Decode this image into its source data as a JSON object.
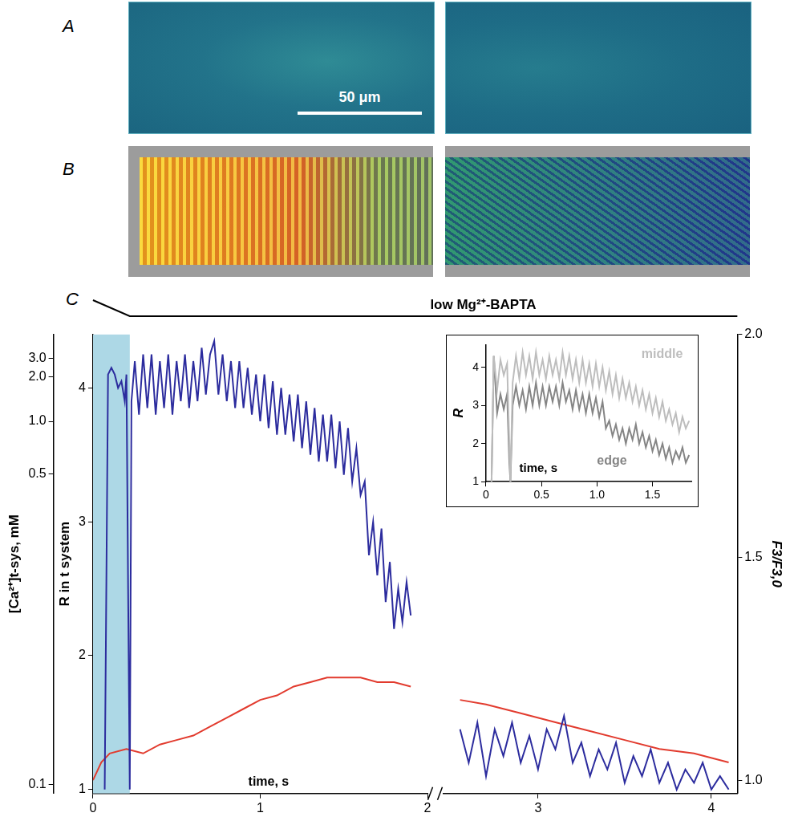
{
  "panels": [
    {
      "panel": "A",
      "scale_bar": "50 μm"
    },
    {
      "panel": "B"
    }
  ],
  "chart_data": [
    {
      "type": "line",
      "panel": "C",
      "x_label": "time, s",
      "y_label": "R in t system",
      "ylim": [
        0.97,
        4.4
      ],
      "yticks": [
        1,
        2,
        3,
        4
      ],
      "ca_axis": {
        "title": "[Ca²⁺]t-sys, mM",
        "ticks": [
          {
            "value": 0.1,
            "r": 1.04
          },
          {
            "value": 0.5,
            "r": 3.36
          },
          {
            "value": 1,
            "label": "1.0",
            "r": 3.75
          },
          {
            "value": 2,
            "label": "2.0",
            "r": 4.08
          },
          {
            "value": 3,
            "label": "3.0",
            "r": 4.22
          }
        ]
      },
      "y2_label": "F3/F3,0",
      "y2lim": [
        0.97,
        2.0
      ],
      "y2ticks": [
        {
          "value": 1,
          "label": "1.0"
        },
        1.5,
        {
          "value": 2,
          "label": "2.0"
        }
      ],
      "grid": false,
      "shaded_region": [
        0,
        0.22
      ],
      "solution_bar": {
        "text": "low Mg²⁺-BAPTA",
        "ramp": [
          0,
          0.22
        ]
      },
      "segments": [
        {
          "xlim": [
            0,
            2
          ],
          "xticks": [
            0,
            1,
            2
          ],
          "series": [
            {
              "color": "#2c2c9e",
              "axis": "y",
              "x": [
                0.07,
                0.09,
                0.11,
                0.13,
                0.15,
                0.17,
                0.19,
                0.2,
                0.21,
                0.22,
                0.23,
                0.25,
                0.275,
                0.3,
                0.325,
                0.35,
                0.375,
                0.4,
                0.425,
                0.45,
                0.475,
                0.5,
                0.525,
                0.55,
                0.575,
                0.6,
                0.625,
                0.65,
                0.675,
                0.7,
                0.725,
                0.75,
                0.775,
                0.8,
                0.825,
                0.85,
                0.875,
                0.9,
                0.925,
                0.95,
                0.975,
                1.0,
                1.025,
                1.05,
                1.075,
                1.1,
                1.125,
                1.15,
                1.175,
                1.2,
                1.225,
                1.25,
                1.275,
                1.3,
                1.325,
                1.35,
                1.375,
                1.4,
                1.425,
                1.45,
                1.475,
                1.5,
                1.525,
                1.55,
                1.575,
                1.6,
                1.625,
                1.65,
                1.675,
                1.7,
                1.725,
                1.75,
                1.775,
                1.8,
                1.825,
                1.85,
                1.875,
                1.9
              ],
              "values": [
                1.0,
                4.1,
                4.15,
                4.1,
                4.0,
                4.05,
                3.9,
                4.1,
                2.5,
                1.0,
                3.9,
                4.2,
                3.8,
                4.25,
                3.85,
                4.25,
                3.8,
                4.2,
                3.85,
                4.25,
                3.8,
                4.2,
                3.9,
                4.25,
                3.85,
                4.2,
                3.9,
                4.3,
                3.95,
                4.25,
                4.35,
                3.95,
                4.25,
                3.9,
                4.2,
                3.85,
                4.2,
                3.85,
                4.15,
                3.8,
                4.1,
                3.75,
                4.1,
                3.7,
                4.05,
                3.65,
                4.0,
                3.65,
                3.95,
                3.6,
                3.95,
                3.55,
                3.9,
                3.5,
                3.85,
                3.45,
                3.8,
                3.45,
                3.8,
                3.4,
                3.75,
                3.35,
                3.7,
                3.3,
                3.55,
                3.2,
                3.3,
                2.75,
                3.0,
                2.6,
                2.95,
                2.4,
                2.7,
                2.2,
                2.5,
                2.25,
                2.55,
                2.3
              ]
            },
            {
              "color": "#e23b2e",
              "axis": "y2",
              "x": [
                0,
                0.05,
                0.1,
                0.2,
                0.3,
                0.4,
                0.5,
                0.6,
                0.7,
                0.8,
                0.9,
                1.0,
                1.1,
                1.2,
                1.3,
                1.4,
                1.5,
                1.6,
                1.7,
                1.8,
                1.9
              ],
              "values": [
                1.0,
                1.04,
                1.06,
                1.07,
                1.06,
                1.08,
                1.09,
                1.1,
                1.12,
                1.14,
                1.16,
                1.18,
                1.19,
                1.21,
                1.22,
                1.23,
                1.23,
                1.23,
                1.22,
                1.22,
                1.21
              ]
            }
          ]
        },
        {
          "xlim": [
            2.45,
            4.15
          ],
          "xticks": [
            3,
            4
          ],
          "series": [
            {
              "color": "#2c2c9e",
              "axis": "y",
              "x": [
                2.55,
                2.6,
                2.65,
                2.7,
                2.75,
                2.8,
                2.85,
                2.9,
                2.95,
                3.0,
                3.05,
                3.1,
                3.15,
                3.2,
                3.25,
                3.3,
                3.35,
                3.4,
                3.45,
                3.5,
                3.55,
                3.6,
                3.65,
                3.7,
                3.75,
                3.8,
                3.85,
                3.9,
                3.95,
                4.0,
                4.05,
                4.1
              ],
              "values": [
                1.45,
                1.2,
                1.5,
                1.1,
                1.45,
                1.25,
                1.5,
                1.2,
                1.4,
                1.15,
                1.45,
                1.3,
                1.55,
                1.2,
                1.35,
                1.1,
                1.3,
                1.15,
                1.35,
                1.05,
                1.25,
                1.1,
                1.3,
                1.05,
                1.2,
                1.0,
                1.15,
                1.05,
                1.2,
                1.0,
                1.1,
                1.0
              ]
            },
            {
              "color": "#e23b2e",
              "axis": "y2",
              "x": [
                2.55,
                2.7,
                2.9,
                3.1,
                3.3,
                3.5,
                3.7,
                3.9,
                4.1
              ],
              "values": [
                1.18,
                1.17,
                1.15,
                1.13,
                1.11,
                1.09,
                1.07,
                1.06,
                1.04
              ]
            }
          ]
        }
      ]
    },
    {
      "type": "line",
      "x_label": "time, s",
      "y_label": "R",
      "xlim": [
        0,
        1.85
      ],
      "xticks": [
        0,
        0.5,
        {
          "value": 1,
          "label": "1.0"
        },
        1.5
      ],
      "ylim": [
        1,
        4.6
      ],
      "yticks": [
        1,
        2,
        3,
        4
      ],
      "grid": false,
      "legend": "inline",
      "x": [
        0.05,
        0.07,
        0.1,
        0.13,
        0.16,
        0.19,
        0.21,
        0.22,
        0.24,
        0.27,
        0.3,
        0.33,
        0.36,
        0.39,
        0.42,
        0.45,
        0.48,
        0.51,
        0.54,
        0.57,
        0.6,
        0.63,
        0.66,
        0.69,
        0.72,
        0.75,
        0.78,
        0.81,
        0.84,
        0.87,
        0.9,
        0.93,
        0.96,
        0.99,
        1.02,
        1.05,
        1.08,
        1.11,
        1.14,
        1.17,
        1.2,
        1.23,
        1.26,
        1.29,
        1.32,
        1.35,
        1.38,
        1.41,
        1.44,
        1.47,
        1.5,
        1.53,
        1.56,
        1.59,
        1.62,
        1.65,
        1.68,
        1.71,
        1.74,
        1.77,
        1.8,
        1.83
      ],
      "series": [
        {
          "name": "middle",
          "color": "#bdbdbd",
          "values": [
            1.0,
            4.3,
            3.4,
            4.2,
            3.8,
            4.1,
            2.0,
            1.0,
            3.6,
            4.3,
            3.7,
            4.4,
            3.8,
            4.3,
            3.7,
            4.4,
            3.8,
            4.2,
            3.7,
            4.3,
            3.8,
            4.2,
            3.7,
            4.4,
            3.8,
            4.3,
            3.7,
            4.2,
            3.6,
            4.2,
            3.6,
            4.1,
            3.5,
            4.1,
            3.5,
            4.0,
            3.4,
            3.9,
            3.3,
            3.8,
            3.2,
            3.7,
            3.2,
            3.6,
            3.1,
            3.5,
            3.0,
            3.4,
            2.9,
            3.3,
            2.8,
            3.2,
            2.7,
            3.1,
            2.6,
            2.9,
            2.5,
            2.8,
            2.3,
            2.7,
            2.4,
            2.6
          ]
        },
        {
          "name": "edge",
          "color": "#858585",
          "values": [
            1.0,
            4.3,
            2.8,
            3.3,
            2.9,
            3.3,
            1.5,
            1.0,
            3.0,
            3.5,
            3.0,
            3.4,
            2.9,
            3.5,
            3.0,
            3.6,
            3.0,
            3.5,
            3.0,
            3.5,
            3.1,
            3.5,
            3.0,
            3.6,
            3.1,
            3.4,
            2.9,
            3.4,
            2.9,
            3.3,
            2.8,
            3.3,
            2.8,
            3.2,
            2.7,
            3.1,
            2.4,
            2.6,
            2.2,
            2.5,
            2.1,
            2.4,
            2.0,
            2.4,
            2.1,
            2.5,
            2.0,
            2.3,
            1.9,
            2.2,
            1.8,
            2.1,
            1.7,
            2.0,
            1.6,
            1.9,
            1.5,
            1.8,
            1.6,
            1.9,
            1.5,
            1.7
          ]
        }
      ]
    }
  ]
}
